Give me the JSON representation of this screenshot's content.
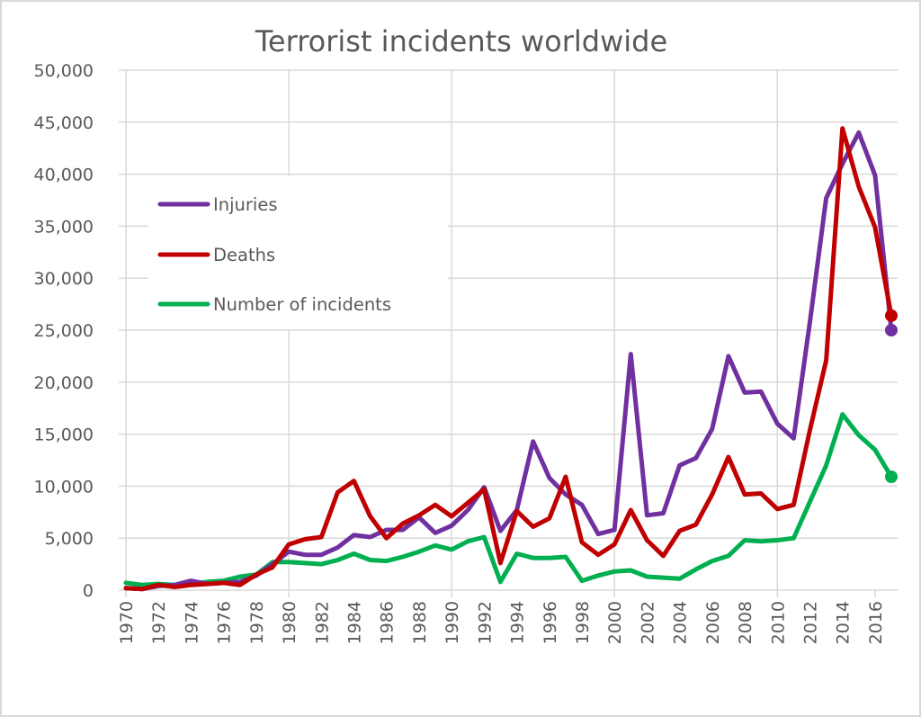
{
  "chart_data": {
    "type": "line",
    "title": "Terrorist incidents worldwide",
    "xlabel": "",
    "ylabel": "",
    "ylim": [
      0,
      50000
    ],
    "xlim": [
      1970,
      2017
    ],
    "grid": true,
    "legend_position": "top-left",
    "y_ticks": [
      "0",
      "5,000",
      "10,000",
      "15,000",
      "20,000",
      "25,000",
      "30,000",
      "35,000",
      "40,000",
      "45,000",
      "50,000"
    ],
    "x_ticks": [
      "1970",
      "1972",
      "1974",
      "1976",
      "1978",
      "1980",
      "1982",
      "1984",
      "1986",
      "1988",
      "1990",
      "1992",
      "1994",
      "1996",
      "1998",
      "2000",
      "2002",
      "2004",
      "2006",
      "2008",
      "2010",
      "2012",
      "2014",
      "2016"
    ],
    "x": [
      1970,
      1971,
      1972,
      1973,
      1974,
      1975,
      1976,
      1977,
      1978,
      1979,
      1980,
      1981,
      1982,
      1983,
      1984,
      1985,
      1986,
      1987,
      1988,
      1989,
      1990,
      1991,
      1992,
      1993,
      1994,
      1995,
      1996,
      1997,
      1998,
      1999,
      2000,
      2001,
      2002,
      2003,
      2004,
      2005,
      2006,
      2007,
      2008,
      2009,
      2010,
      2011,
      2012,
      2013,
      2014,
      2015,
      2016,
      2017
    ],
    "series": [
      {
        "name": "Injuries",
        "color": "#7030a0",
        "values": [
          200,
          100,
          400,
          500,
          900,
          600,
          700,
          800,
          1400,
          2500,
          3700,
          3400,
          3400,
          4100,
          5300,
          5100,
          5800,
          5800,
          7000,
          5500,
          6200,
          7700,
          9900,
          5700,
          7700,
          14300,
          10800,
          9200,
          8200,
          5400,
          5800,
          22700,
          7200,
          7400,
          12000,
          12700,
          15500,
          22500,
          19000,
          19100,
          16000,
          14600,
          25800,
          37700,
          41000,
          44000,
          39900,
          25000
        ]
      },
      {
        "name": "Deaths",
        "color": "#c00000",
        "values": [
          200,
          100,
          500,
          300,
          500,
          600,
          700,
          500,
          1500,
          2200,
          4400,
          4900,
          5100,
          9400,
          10500,
          7100,
          5000,
          6400,
          7200,
          8200,
          7100,
          8400,
          9700,
          2600,
          7600,
          6100,
          6900,
          10900,
          4600,
          3400,
          4400,
          7700,
          4800,
          3300,
          5700,
          6300,
          9200,
          12800,
          9200,
          9300,
          7800,
          8200,
          15400,
          22100,
          44400,
          38800,
          34900,
          26400
        ]
      },
      {
        "name": "Number of incidents",
        "color": "#00b050",
        "values": [
          700,
          500,
          600,
          500,
          600,
          800,
          900,
          1300,
          1500,
          2700,
          2700,
          2600,
          2500,
          2900,
          3500,
          2900,
          2800,
          3200,
          3700,
          4300,
          3900,
          4700,
          5100,
          800,
          3500,
          3100,
          3100,
          3200,
          900,
          1400,
          1800,
          1900,
          1300,
          1200,
          1100,
          2000,
          2800,
          3300,
          4800,
          4700,
          4800,
          5000,
          8500,
          12000,
          16900,
          14900,
          13500,
          10900
        ]
      }
    ]
  }
}
